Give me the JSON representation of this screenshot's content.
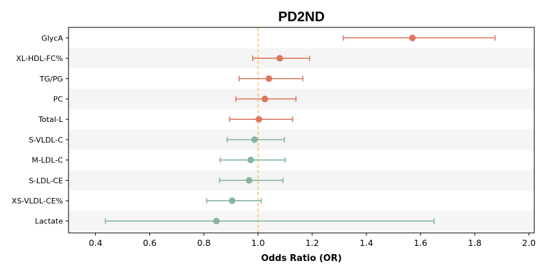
{
  "chart_data": {
    "type": "forest",
    "title": "PD2ND",
    "xlabel": "Odds Ratio (OR)",
    "xlim": [
      0.3,
      2.02
    ],
    "xticks": [
      0.4,
      0.6,
      0.8,
      1.0,
      1.2,
      1.4,
      1.6,
      1.8,
      2.0
    ],
    "xtick_labels": [
      "0.4",
      "0.6",
      "0.8",
      "1.0",
      "1.2",
      "1.4",
      "1.6",
      "1.8",
      "2.0"
    ],
    "reference_line": 1.0,
    "colors": {
      "positive": "#dc7860",
      "negative": "#86b49c",
      "reference": "#f0c878",
      "band": "#f5f5f5"
    },
    "rows": [
      {
        "label": "GlycA",
        "or": 1.57,
        "lo": 1.315,
        "hi": 1.875,
        "group": "positive"
      },
      {
        "label": "XL-HDL-FC%",
        "or": 1.08,
        "lo": 0.98,
        "hi": 1.19,
        "group": "positive"
      },
      {
        "label": "TG/PG",
        "or": 1.04,
        "lo": 0.93,
        "hi": 1.165,
        "group": "positive"
      },
      {
        "label": "PC",
        "or": 1.025,
        "lo": 0.918,
        "hi": 1.14,
        "group": "positive"
      },
      {
        "label": "Total-L",
        "or": 1.003,
        "lo": 0.895,
        "hi": 1.127,
        "group": "positive"
      },
      {
        "label": "S-VLDL-C",
        "or": 0.987,
        "lo": 0.886,
        "hi": 1.097,
        "group": "negative"
      },
      {
        "label": "M-LDL-C",
        "or": 0.973,
        "lo": 0.86,
        "hi": 1.1,
        "group": "negative"
      },
      {
        "label": "S-LDL-CE",
        "or": 0.967,
        "lo": 0.858,
        "hi": 1.092,
        "group": "negative"
      },
      {
        "label": "XS-VLDL-CE%",
        "or": 0.904,
        "lo": 0.81,
        "hi": 1.012,
        "group": "negative"
      },
      {
        "label": "Lactate",
        "or": 0.846,
        "lo": 0.436,
        "hi": 1.65,
        "group": "negative"
      }
    ]
  }
}
